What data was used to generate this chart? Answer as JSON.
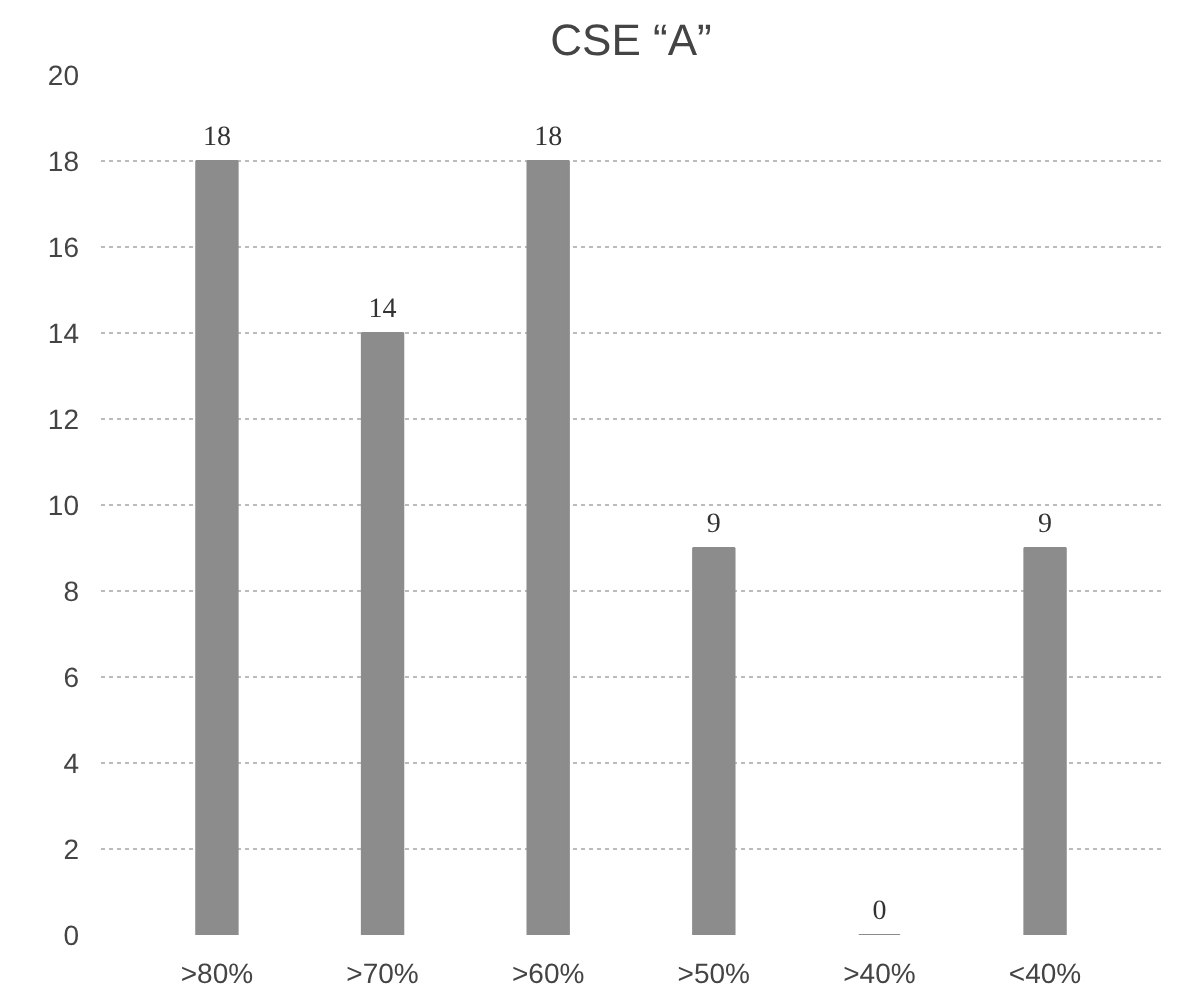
{
  "chart_data": {
    "type": "bar",
    "title": "CSE “A”",
    "categories": [
      ">80%",
      ">70%",
      ">60%",
      ">50%",
      ">40%",
      "<40%"
    ],
    "values": [
      18,
      14,
      18,
      9,
      0,
      9
    ],
    "color": "#8c8c8c",
    "ylim": [
      0,
      20
    ],
    "yticks": [
      0,
      2,
      4,
      6,
      8,
      10,
      12,
      14,
      16,
      18,
      20
    ],
    "grid": "y",
    "data_labels": true
  }
}
